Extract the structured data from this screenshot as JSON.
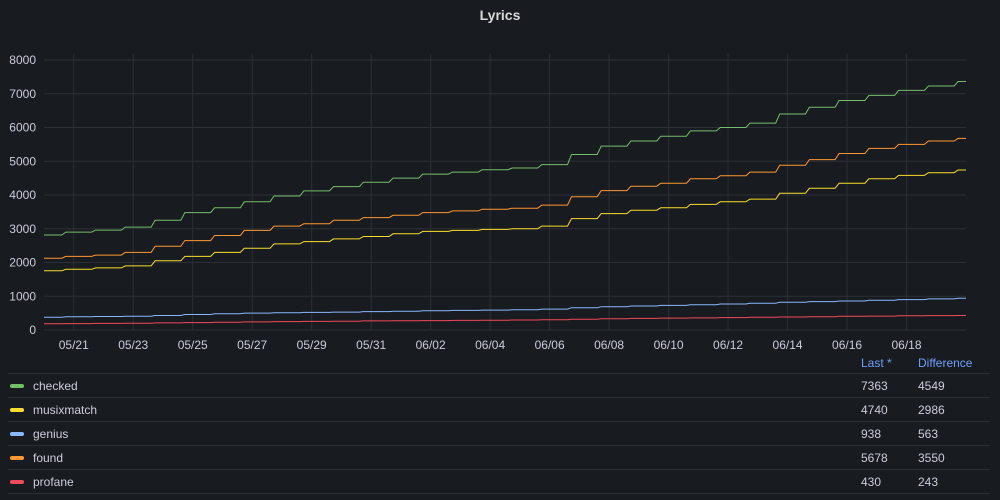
{
  "panel": {
    "title": "Lyrics"
  },
  "legend": {
    "columns": {
      "last": "Last *",
      "difference": "Difference"
    },
    "rows": [
      {
        "name": "checked",
        "color": "#73bf69",
        "last": "7363",
        "difference": "4549"
      },
      {
        "name": "musixmatch",
        "color": "#fade2a",
        "last": "4740",
        "difference": "2986"
      },
      {
        "name": "genius",
        "color": "#8ab8ff",
        "last": "938",
        "difference": "563"
      },
      {
        "name": "found",
        "color": "#ff9830",
        "last": "5678",
        "difference": "3550"
      },
      {
        "name": "profane",
        "color": "#f2495c",
        "last": "430",
        "difference": "243"
      }
    ]
  },
  "chart_data": {
    "type": "line",
    "title": "Lyrics",
    "x_ticks": [
      "05/21",
      "05/23",
      "05/25",
      "05/27",
      "05/29",
      "05/31",
      "06/02",
      "06/04",
      "06/06",
      "06/08",
      "06/10",
      "06/12",
      "06/14",
      "06/16",
      "06/18"
    ],
    "x_range": [
      "05/20",
      "06/20"
    ],
    "ylim": [
      0,
      8000
    ],
    "y_ticks": [
      0,
      1000,
      2000,
      3000,
      4000,
      5000,
      6000,
      7000,
      8000
    ],
    "grid": true,
    "legend_position": "bottom",
    "series": [
      {
        "name": "checked",
        "color": "#73bf69",
        "points": [
          [
            "05/20",
            2814
          ],
          [
            "05/21",
            2900
          ],
          [
            "05/22",
            2960
          ],
          [
            "05/23",
            3050
          ],
          [
            "05/24",
            3250
          ],
          [
            "05/25",
            3480
          ],
          [
            "05/26",
            3620
          ],
          [
            "05/27",
            3800
          ],
          [
            "05/28",
            3970
          ],
          [
            "05/29",
            4120
          ],
          [
            "05/30",
            4250
          ],
          [
            "05/31",
            4380
          ],
          [
            "06/01",
            4500
          ],
          [
            "06/02",
            4620
          ],
          [
            "06/03",
            4680
          ],
          [
            "06/04",
            4750
          ],
          [
            "06/05",
            4800
          ],
          [
            "06/06",
            4900
          ],
          [
            "06/07",
            5200
          ],
          [
            "06/08",
            5450
          ],
          [
            "06/09",
            5600
          ],
          [
            "06/10",
            5740
          ],
          [
            "06/11",
            5900
          ],
          [
            "06/12",
            6000
          ],
          [
            "06/13",
            6130
          ],
          [
            "06/14",
            6400
          ],
          [
            "06/15",
            6600
          ],
          [
            "06/16",
            6800
          ],
          [
            "06/17",
            6950
          ],
          [
            "06/18",
            7100
          ],
          [
            "06/19",
            7230
          ],
          [
            "06/20",
            7363
          ]
        ]
      },
      {
        "name": "musixmatch",
        "color": "#fade2a",
        "points": [
          [
            "05/20",
            1754
          ],
          [
            "05/21",
            1800
          ],
          [
            "05/22",
            1840
          ],
          [
            "05/23",
            1900
          ],
          [
            "05/24",
            2050
          ],
          [
            "05/25",
            2180
          ],
          [
            "05/26",
            2300
          ],
          [
            "05/27",
            2420
          ],
          [
            "05/28",
            2550
          ],
          [
            "05/29",
            2620
          ],
          [
            "05/30",
            2700
          ],
          [
            "05/31",
            2770
          ],
          [
            "06/01",
            2850
          ],
          [
            "06/02",
            2920
          ],
          [
            "06/03",
            2950
          ],
          [
            "06/04",
            2980
          ],
          [
            "06/05",
            3000
          ],
          [
            "06/06",
            3080
          ],
          [
            "06/07",
            3300
          ],
          [
            "06/08",
            3450
          ],
          [
            "06/09",
            3550
          ],
          [
            "06/10",
            3620
          ],
          [
            "06/11",
            3720
          ],
          [
            "06/12",
            3800
          ],
          [
            "06/13",
            3880
          ],
          [
            "06/14",
            4050
          ],
          [
            "06/15",
            4200
          ],
          [
            "06/16",
            4350
          ],
          [
            "06/17",
            4480
          ],
          [
            "06/18",
            4580
          ],
          [
            "06/19",
            4660
          ],
          [
            "06/20",
            4740
          ]
        ]
      },
      {
        "name": "genius",
        "color": "#8ab8ff",
        "points": [
          [
            "05/20",
            375
          ],
          [
            "05/21",
            390
          ],
          [
            "05/22",
            400
          ],
          [
            "05/23",
            410
          ],
          [
            "05/24",
            430
          ],
          [
            "05/25",
            460
          ],
          [
            "05/26",
            480
          ],
          [
            "05/27",
            500
          ],
          [
            "05/28",
            510
          ],
          [
            "05/29",
            520
          ],
          [
            "05/30",
            530
          ],
          [
            "05/31",
            545
          ],
          [
            "06/01",
            555
          ],
          [
            "06/02",
            570
          ],
          [
            "06/03",
            580
          ],
          [
            "06/04",
            590
          ],
          [
            "06/05",
            600
          ],
          [
            "06/06",
            620
          ],
          [
            "06/07",
            660
          ],
          [
            "06/08",
            690
          ],
          [
            "06/09",
            710
          ],
          [
            "06/10",
            730
          ],
          [
            "06/11",
            750
          ],
          [
            "06/12",
            770
          ],
          [
            "06/13",
            790
          ],
          [
            "06/14",
            820
          ],
          [
            "06/15",
            840
          ],
          [
            "06/16",
            860
          ],
          [
            "06/17",
            880
          ],
          [
            "06/18",
            900
          ],
          [
            "06/19",
            920
          ],
          [
            "06/20",
            938
          ]
        ]
      },
      {
        "name": "found",
        "color": "#ff9830",
        "points": [
          [
            "05/20",
            2128
          ],
          [
            "05/21",
            2180
          ],
          [
            "05/22",
            2220
          ],
          [
            "05/23",
            2300
          ],
          [
            "05/24",
            2480
          ],
          [
            "05/25",
            2650
          ],
          [
            "05/26",
            2800
          ],
          [
            "05/27",
            2950
          ],
          [
            "05/28",
            3080
          ],
          [
            "05/29",
            3150
          ],
          [
            "05/30",
            3250
          ],
          [
            "05/31",
            3330
          ],
          [
            "06/01",
            3400
          ],
          [
            "06/02",
            3480
          ],
          [
            "06/03",
            3530
          ],
          [
            "06/04",
            3580
          ],
          [
            "06/05",
            3610
          ],
          [
            "06/06",
            3700
          ],
          [
            "06/07",
            3950
          ],
          [
            "06/08",
            4130
          ],
          [
            "06/09",
            4260
          ],
          [
            "06/10",
            4350
          ],
          [
            "06/11",
            4480
          ],
          [
            "06/12",
            4570
          ],
          [
            "06/13",
            4680
          ],
          [
            "06/14",
            4880
          ],
          [
            "06/15",
            5050
          ],
          [
            "06/16",
            5230
          ],
          [
            "06/17",
            5380
          ],
          [
            "06/18",
            5500
          ],
          [
            "06/19",
            5600
          ],
          [
            "06/20",
            5678
          ]
        ]
      },
      {
        "name": "profane",
        "color": "#f2495c",
        "points": [
          [
            "05/20",
            187
          ],
          [
            "05/21",
            190
          ],
          [
            "05/22",
            195
          ],
          [
            "05/23",
            200
          ],
          [
            "05/24",
            210
          ],
          [
            "05/25",
            220
          ],
          [
            "05/26",
            230
          ],
          [
            "05/27",
            240
          ],
          [
            "05/28",
            250
          ],
          [
            "05/29",
            255
          ],
          [
            "05/30",
            262
          ],
          [
            "05/31",
            270
          ],
          [
            "06/01",
            275
          ],
          [
            "06/02",
            280
          ],
          [
            "06/03",
            285
          ],
          [
            "06/04",
            290
          ],
          [
            "06/05",
            295
          ],
          [
            "06/06",
            305
          ],
          [
            "06/07",
            320
          ],
          [
            "06/08",
            335
          ],
          [
            "06/09",
            345
          ],
          [
            "06/10",
            352
          ],
          [
            "06/11",
            360
          ],
          [
            "06/12",
            368
          ],
          [
            "06/13",
            375
          ],
          [
            "06/14",
            385
          ],
          [
            "06/15",
            395
          ],
          [
            "06/16",
            405
          ],
          [
            "06/17",
            413
          ],
          [
            "06/18",
            420
          ],
          [
            "06/19",
            426
          ],
          [
            "06/20",
            430
          ]
        ]
      }
    ]
  }
}
